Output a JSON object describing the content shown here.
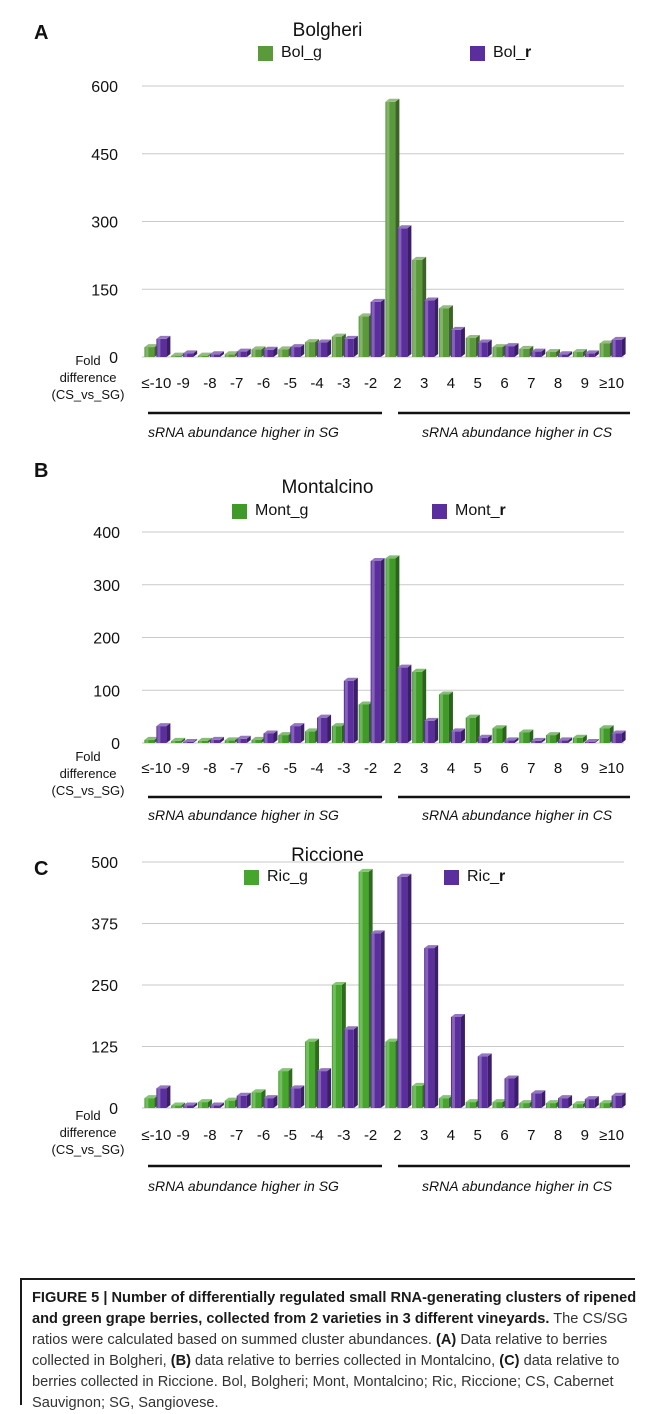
{
  "chart_data": [
    {
      "type": "bar",
      "panel_label": "A",
      "title": "Bolgheri",
      "categories": [
        "≤-10",
        "-9",
        "-8",
        "-7",
        "-6",
        "-5",
        "-4",
        "-3",
        "-2",
        "2",
        "3",
        "4",
        "5",
        "6",
        "7",
        "8",
        "9",
        "≥10"
      ],
      "series": [
        {
          "name": "Bol_g",
          "legend_prefix": "Bol_",
          "legend_suffix": "g",
          "color": "#5a9a3a",
          "values": [
            22,
            3,
            3,
            6,
            17,
            17,
            33,
            45,
            90,
            565,
            215,
            108,
            42,
            22,
            18,
            11,
            11,
            30
          ]
        },
        {
          "name": "Bol_r",
          "legend_prefix": "Bol_",
          "legend_suffix": "r",
          "color": "#5b2e9e",
          "values": [
            40,
            8,
            6,
            12,
            16,
            22,
            32,
            40,
            122,
            285,
            125,
            60,
            32,
            24,
            12,
            6,
            8,
            38
          ]
        }
      ],
      "ylim": [
        0,
        600
      ],
      "yticks": [
        0,
        150,
        300,
        450,
        600
      ],
      "x_title": "Fold difference (CS_vs_SG)",
      "group_left": "sRNA abundance higher in SG",
      "group_right": "sRNA abundance higher in CS"
    },
    {
      "type": "bar",
      "panel_label": "B",
      "title": "Montalcino",
      "categories": [
        "≤-10",
        "-9",
        "-8",
        "-7",
        "-6",
        "-5",
        "-4",
        "-3",
        "-2",
        "2",
        "3",
        "4",
        "5",
        "6",
        "7",
        "8",
        "9",
        "≥10"
      ],
      "series": [
        {
          "name": "Mont_g",
          "legend_prefix": "Mont_",
          "legend_suffix": "g",
          "color": "#3f9a28",
          "values": [
            6,
            4,
            4,
            5,
            6,
            15,
            22,
            32,
            73,
            350,
            135,
            92,
            48,
            28,
            20,
            15,
            10,
            28
          ]
        },
        {
          "name": "Mont_r",
          "legend_prefix": "Mont_",
          "legend_suffix": "r",
          "color": "#5b2e9e",
          "values": [
            32,
            2,
            6,
            8,
            18,
            32,
            48,
            118,
            345,
            143,
            42,
            22,
            10,
            5,
            4,
            5,
            2,
            18
          ]
        }
      ],
      "ylim": [
        0,
        400
      ],
      "yticks": [
        0,
        100,
        200,
        300,
        400
      ],
      "x_title": "Fold difference (CS_vs_SG)",
      "group_left": "sRNA abundance higher in SG",
      "group_right": "sRNA abundance higher in CS"
    },
    {
      "type": "bar",
      "panel_label": "C",
      "title": "Riccione",
      "categories": [
        "≤-10",
        "-9",
        "-8",
        "-7",
        "-6",
        "-5",
        "-4",
        "-3",
        "-2",
        "2",
        "3",
        "4",
        "5",
        "6",
        "7",
        "8",
        "9",
        "≥10"
      ],
      "series": [
        {
          "name": "Ric_g",
          "legend_prefix": "Ric_",
          "legend_suffix": "g",
          "color": "#46a52c",
          "values": [
            20,
            5,
            12,
            15,
            32,
            75,
            135,
            250,
            480,
            135,
            45,
            20,
            12,
            12,
            10,
            10,
            8,
            10
          ]
        },
        {
          "name": "Ric_r",
          "legend_prefix": "Ric_",
          "legend_suffix": "r",
          "color": "#5b2e9e",
          "values": [
            40,
            5,
            5,
            25,
            20,
            40,
            75,
            160,
            355,
            470,
            325,
            185,
            105,
            60,
            30,
            20,
            18,
            25
          ]
        }
      ],
      "ylim": [
        0,
        500
      ],
      "yticks": [
        0,
        125,
        250,
        375,
        500
      ],
      "x_title": "Fold difference (CS_vs_SG)",
      "group_left": "sRNA abundance higher in SG",
      "group_right": "sRNA abundance higher in CS"
    }
  ],
  "caption": {
    "heading": "FIGURE 5 | Number of differentially regulated small RNA-generating clusters of ripened and green grape berries, collected from 2 varieties in 3 different vineyards.",
    "part1": " The CS/SG ratios were calculated based on summed cluster abundances. ",
    "a_label": "(A)",
    "part2": " Data relative to berries collected in Bolgheri, ",
    "b_label": "(B)",
    "part3": " data relative to berries collected in Montalcino, ",
    "c_label": "(C)",
    "part4": " data relative to berries collected in Riccione. Bol, Bolgheri; Mont, Montalcino; Ric, Riccione; CS, Cabernet Sauvignon; SG, Sangiovese."
  }
}
